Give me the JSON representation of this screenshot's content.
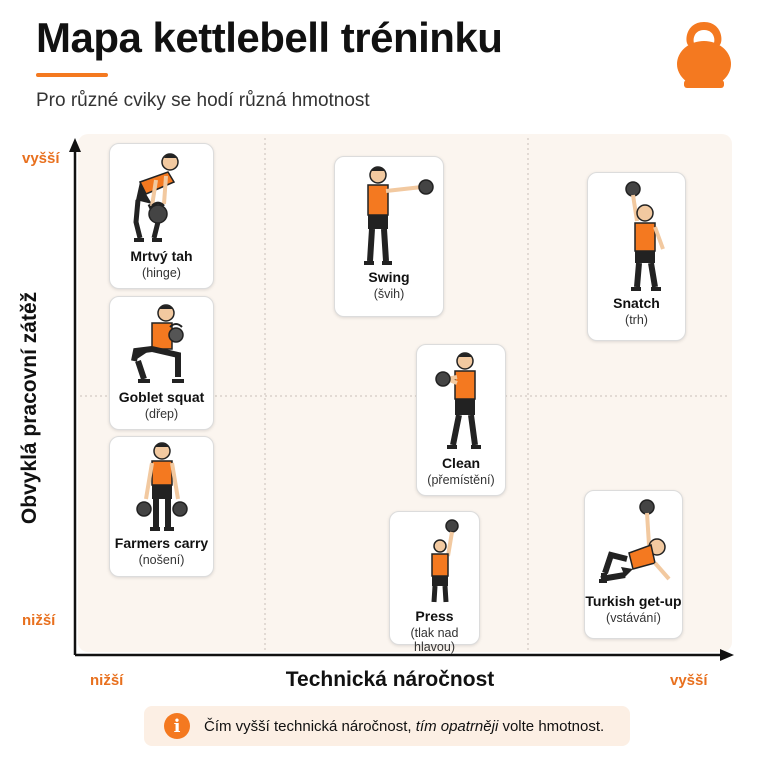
{
  "header": {
    "title": "Mapa kettlebell tréninku",
    "subtitle": "Pro různé cviky se hodí různá hmotnost",
    "logo_icon": "kettlebell-icon"
  },
  "colors": {
    "accent": "#f47920",
    "plot_background": "#fbf5ef",
    "note_background": "#fcefe4"
  },
  "axes": {
    "y_title": "Obvyklá pracovní zátěž",
    "y_high": "vyšší",
    "y_low": "nižší",
    "x_title": "Technická náročnost",
    "x_low": "nižší",
    "x_high": "vyšší"
  },
  "exercises": [
    {
      "name": "Mrtvý tah",
      "sub": "(hinge)",
      "pose": "deadlift"
    },
    {
      "name": "Goblet squat",
      "sub": "(dřep)",
      "pose": "squat"
    },
    {
      "name": "Farmers carry",
      "sub": "(nošení)",
      "pose": "carry"
    },
    {
      "name": "Swing",
      "sub": "(švih)",
      "pose": "swing"
    },
    {
      "name": "Clean",
      "sub": "(přemístění)",
      "pose": "clean"
    },
    {
      "name": "Press",
      "sub": "(tlak nad hlavou)",
      "pose": "press"
    },
    {
      "name": "Snatch",
      "sub": "(trh)",
      "pose": "snatch"
    },
    {
      "name": "Turkish get-up",
      "sub": "(vstávání)",
      "pose": "getup"
    }
  ],
  "note": {
    "icon": "info-icon",
    "text_before": "Čím vyšší technická náročnost, ",
    "text_italic": "tím opatrněji",
    "text_after": " volte hmotnost."
  }
}
